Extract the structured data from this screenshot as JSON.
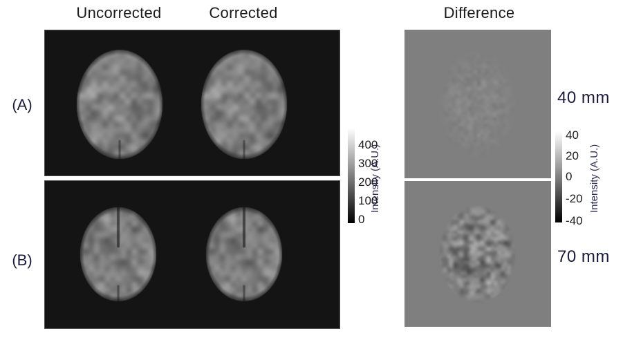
{
  "figure": {
    "column_headers": {
      "uncorrected": "Uncorrected",
      "corrected": "Corrected",
      "difference": "Difference"
    },
    "row_labels": {
      "a": "(A)",
      "b": "(B)"
    },
    "depth_labels": {
      "a": "40 mm",
      "b": "70 mm"
    }
  },
  "colorbars": {
    "left": {
      "title": "Intensity (A.U.)",
      "ticks": [
        "400",
        "300",
        "200",
        "100",
        "0"
      ]
    },
    "right": {
      "title": "Intensity (A.U.)",
      "ticks": [
        "40",
        "20",
        "0",
        "-20",
        "-40"
      ]
    }
  },
  "colors": {
    "panel_black": "#141414",
    "panel_gray": "#7f7f7f",
    "label_navy": "#1b1b3c",
    "header_text": "#1a1a1a",
    "colorbar_top": "#ffffff",
    "colorbar_bottom": "#000000"
  }
}
